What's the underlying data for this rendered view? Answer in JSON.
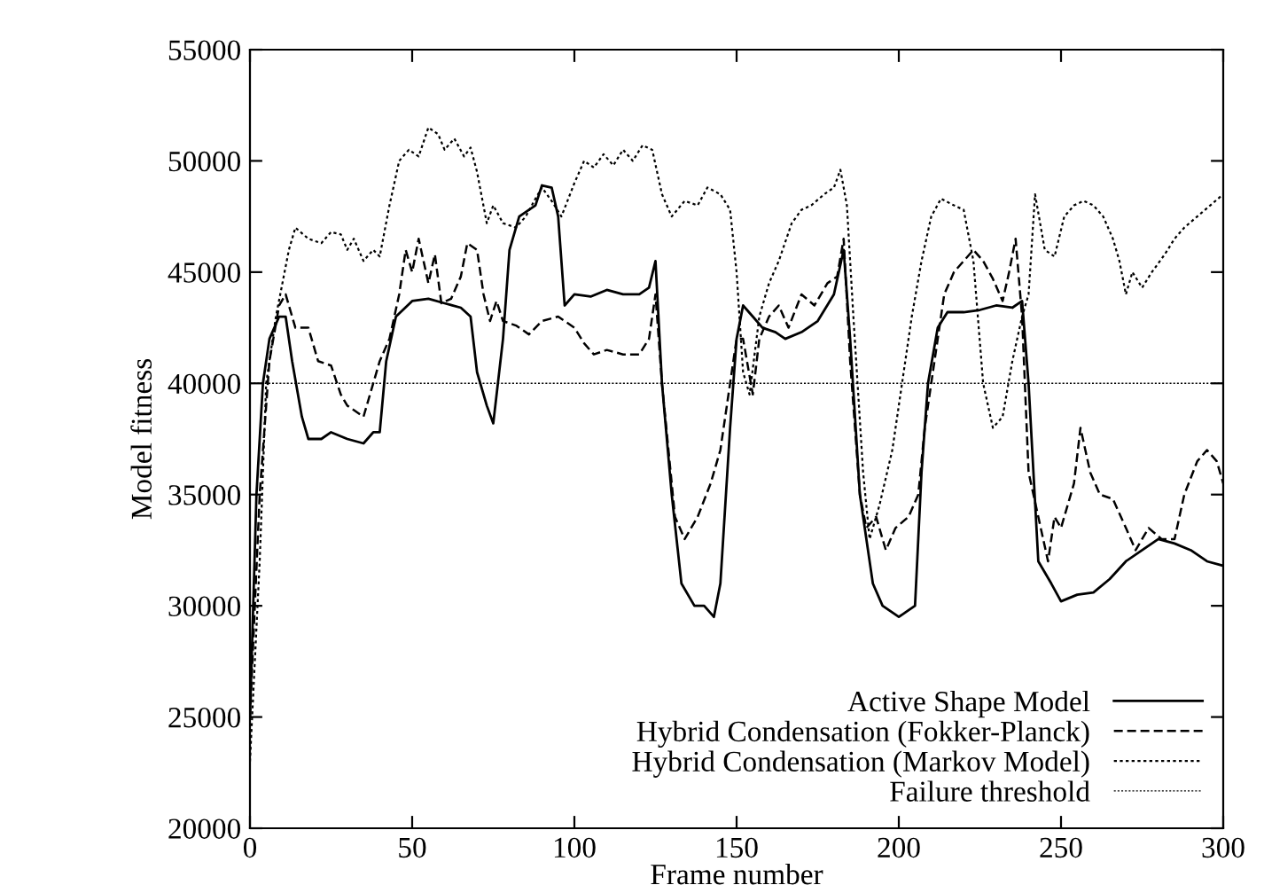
{
  "chart_data": {
    "type": "line",
    "xlabel": "Frame number",
    "ylabel": "Model fitness",
    "xlim": [
      0,
      300
    ],
    "ylim": [
      20000,
      55000
    ],
    "xticks": [
      0,
      50,
      100,
      150,
      200,
      250,
      300
    ],
    "yticks": [
      20000,
      25000,
      30000,
      35000,
      40000,
      45000,
      50000,
      55000
    ],
    "grid": false,
    "legend": "bottom right",
    "series": [
      {
        "name": "Active Shape Model",
        "color": "#000000",
        "line_style": "solid",
        "x": [
          0,
          2,
          4,
          6,
          9,
          11,
          13,
          16,
          18,
          22,
          25,
          30,
          35,
          38,
          40,
          42,
          45,
          50,
          55,
          60,
          65,
          68,
          70,
          73,
          75,
          78,
          80,
          83,
          86,
          88,
          90,
          93,
          95,
          97,
          100,
          105,
          110,
          115,
          120,
          123,
          125,
          127,
          130,
          133,
          137,
          140,
          143,
          145,
          148,
          150,
          152,
          155,
          158,
          162,
          165,
          170,
          175,
          180,
          183,
          185,
          188,
          192,
          195,
          200,
          203,
          205,
          207,
          209,
          212,
          215,
          220,
          225,
          230,
          235,
          238,
          240,
          243,
          247,
          250,
          255,
          260,
          265,
          270,
          275,
          280,
          285,
          290,
          295,
          300
        ],
        "values": [
          25000,
          35000,
          40000,
          42000,
          43000,
          43000,
          41000,
          38500,
          37500,
          37500,
          37800,
          37500,
          37300,
          37800,
          37800,
          41000,
          43000,
          43700,
          43800,
          43600,
          43400,
          43000,
          40500,
          39000,
          38200,
          42000,
          46000,
          47500,
          47800,
          48000,
          48900,
          48800,
          47500,
          43500,
          44000,
          43900,
          44200,
          44000,
          44000,
          44300,
          45500,
          40000,
          35000,
          31000,
          30000,
          30000,
          29500,
          31000,
          38000,
          42000,
          43500,
          43000,
          42500,
          42300,
          42000,
          42300,
          42800,
          44000,
          46000,
          42000,
          35000,
          31000,
          30000,
          29500,
          29800,
          30000,
          36000,
          40000,
          42500,
          43200,
          43200,
          43300,
          43500,
          43400,
          43700,
          40000,
          32000,
          31000,
          30200,
          30500,
          30600,
          31200,
          32000,
          32500,
          33000,
          32800,
          32500,
          32000,
          31800
        ]
      },
      {
        "name": "Hybrid Condensation (Fokker-Planck)",
        "color": "#000000",
        "line_style": "dashed",
        "x": [
          0,
          3,
          6,
          9,
          11,
          14,
          18,
          21,
          25,
          28,
          30,
          35,
          37,
          40,
          43,
          46,
          48,
          50,
          52,
          55,
          57,
          59,
          62,
          65,
          67,
          70,
          72,
          74,
          76,
          78,
          82,
          86,
          90,
          95,
          100,
          103,
          106,
          110,
          115,
          120,
          123,
          125,
          127,
          131,
          134,
          138,
          142,
          145,
          147,
          150,
          152,
          155,
          157,
          160,
          163,
          166,
          170,
          174,
          178,
          181,
          183,
          185,
          188,
          190,
          193,
          196,
          199,
          203,
          206,
          208,
          211,
          214,
          217,
          220,
          223,
          226,
          229,
          232,
          234,
          236,
          238,
          240,
          243,
          246,
          248,
          250,
          254,
          256,
          259,
          262,
          266,
          270,
          273,
          277,
          281,
          285,
          288,
          292,
          295,
          298,
          300
        ],
        "values": [
          25000,
          35000,
          41000,
          43500,
          44000,
          42500,
          42500,
          41000,
          40800,
          39500,
          39000,
          38500,
          39500,
          41000,
          42000,
          44000,
          46000,
          45000,
          46500,
          44500,
          45800,
          43600,
          43800,
          44800,
          46300,
          46000,
          44000,
          42800,
          43700,
          42800,
          42600,
          42200,
          42800,
          43000,
          42500,
          41800,
          41300,
          41500,
          41300,
          41300,
          42000,
          44000,
          40000,
          34000,
          33000,
          34000,
          35500,
          37000,
          39000,
          42000,
          42000,
          39500,
          42000,
          43000,
          43500,
          42500,
          44000,
          43500,
          44500,
          44800,
          46500,
          41000,
          35000,
          33500,
          34000,
          32500,
          33500,
          34000,
          35000,
          38000,
          41000,
          44000,
          45000,
          45500,
          46000,
          45500,
          44700,
          43700,
          45000,
          46500,
          43000,
          36000,
          34000,
          32000,
          34000,
          33500,
          35500,
          38000,
          36000,
          35000,
          34800,
          33500,
          32500,
          33500,
          33000,
          33000,
          35000,
          36500,
          37000,
          36500,
          35500
        ]
      },
      {
        "name": "Hybrid Condensation (Markov Model)",
        "color": "#000000",
        "line_style": "dotted",
        "x": [
          0,
          3,
          5,
          8,
          10,
          12,
          14,
          18,
          22,
          25,
          28,
          30,
          32,
          35,
          38,
          40,
          43,
          46,
          49,
          52,
          55,
          58,
          60,
          63,
          66,
          68,
          70,
          73,
          75,
          78,
          82,
          85,
          88,
          90,
          93,
          96,
          100,
          103,
          106,
          109,
          112,
          115,
          118,
          121,
          124,
          127,
          130,
          134,
          138,
          141,
          145,
          148,
          150,
          152,
          154,
          157,
          160,
          163,
          167,
          170,
          173,
          177,
          180,
          182,
          184,
          186,
          189,
          191,
          194,
          198,
          201,
          204,
          207,
          210,
          213,
          217,
          220,
          223,
          226,
          229,
          232,
          235,
          238,
          240,
          242,
          245,
          248,
          251,
          254,
          257,
          260,
          263,
          266,
          268,
          270,
          272,
          275,
          278,
          282,
          285,
          288,
          292,
          296,
          300
        ],
        "values": [
          23000,
          32000,
          40000,
          43000,
          44500,
          46000,
          47000,
          46500,
          46300,
          46800,
          46700,
          46000,
          46500,
          45500,
          46000,
          45700,
          48000,
          50000,
          50500,
          50200,
          51500,
          51200,
          50500,
          51000,
          50200,
          50600,
          49500,
          47200,
          48000,
          47200,
          47000,
          47500,
          48300,
          48800,
          48200,
          47500,
          49000,
          50000,
          49700,
          50300,
          49800,
          50500,
          50000,
          50700,
          50500,
          48500,
          47500,
          48200,
          48000,
          48800,
          48500,
          47800,
          45000,
          40500,
          39500,
          43000,
          44500,
          45500,
          47200,
          47800,
          48000,
          48500,
          48800,
          49600,
          48000,
          43000,
          36000,
          33000,
          34500,
          37000,
          40000,
          43000,
          45500,
          47500,
          48300,
          48000,
          47800,
          45500,
          40000,
          38000,
          38500,
          41000,
          43000,
          44000,
          48500,
          46000,
          45700,
          47500,
          48000,
          48200,
          48000,
          47500,
          46500,
          45500,
          44000,
          45000,
          44300,
          45000,
          45800,
          46500,
          47000,
          47500,
          48000,
          48500
        ]
      },
      {
        "name": "Failure threshold",
        "color": "#000000",
        "line_style": "dotted",
        "x": [
          0,
          300
        ],
        "values": [
          40000,
          40000
        ]
      }
    ]
  }
}
